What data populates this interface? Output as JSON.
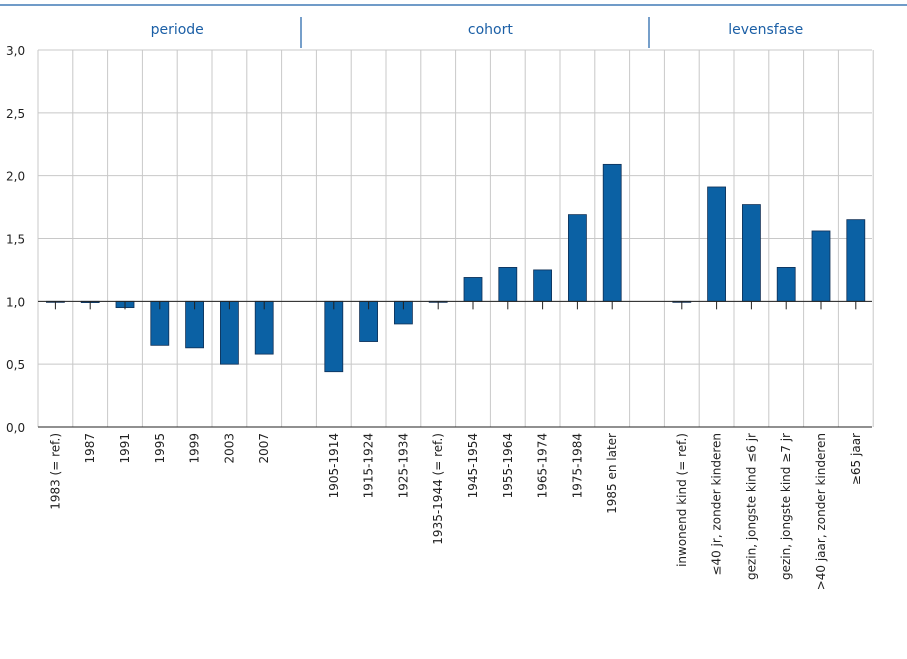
{
  "chart_data": {
    "type": "bar",
    "title": "",
    "xlabel": "",
    "ylabel": "",
    "ylim": [
      0,
      3
    ],
    "baseline": 1.0,
    "yticks": [
      "0,0",
      "0,5",
      "1,0",
      "1,5",
      "2,0",
      "2,5",
      "3,0"
    ],
    "grid": true,
    "bar_color": "#0b61a4",
    "header_color": "#1b5fa6",
    "groups": [
      {
        "name": "periode",
        "categories": [
          "1983 (= ref.)",
          "1987",
          "1991",
          "1995",
          "1999",
          "2003",
          "2007"
        ],
        "values": [
          1.0,
          0.99,
          0.95,
          0.65,
          0.63,
          0.5,
          0.58
        ]
      },
      {
        "name": "cohort",
        "categories": [
          "1905-1914",
          "1915-1924",
          "1925-1934",
          "1935-1944 (= ref.)",
          "1945-1954",
          "1955-1964",
          "1965-1974",
          "1975-1984",
          "1985 en later"
        ],
        "values": [
          0.44,
          0.68,
          0.82,
          1.0,
          1.19,
          1.27,
          1.25,
          1.69,
          2.09
        ]
      },
      {
        "name": "levensfase",
        "categories": [
          "inwonend kind (= ref.)",
          "≤40 jr, zonder kinderen",
          "gezin, jongste kind ≤6 jr",
          "gezin, jongste kind ≥7 jr",
          ">40 jaar, zonder kinderen",
          "≥65 jaar"
        ],
        "values": [
          1.0,
          1.91,
          1.77,
          1.27,
          1.56,
          1.65
        ]
      }
    ]
  }
}
